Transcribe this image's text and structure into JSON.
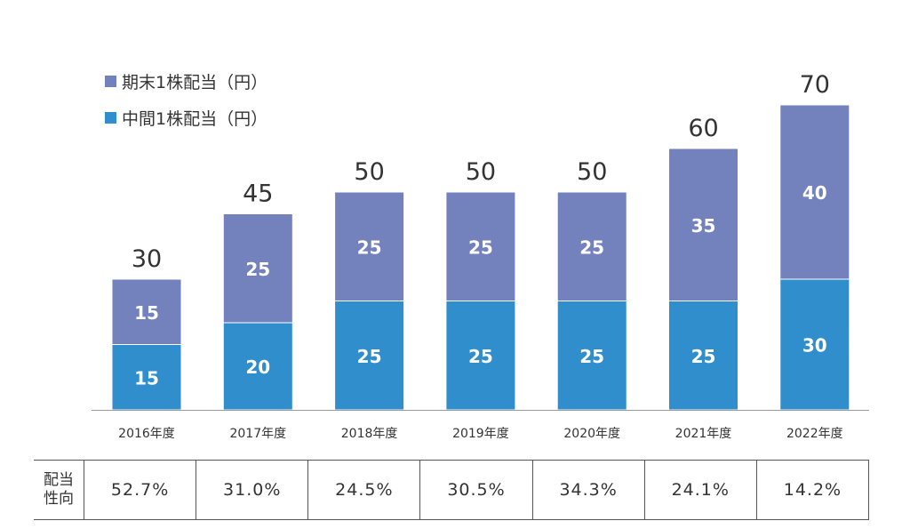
{
  "colors": {
    "period_end": "#7381bd",
    "interim": "#318ecd",
    "axis": "#999999"
  },
  "legend": {
    "period_end_label": "期末1株配当（円）",
    "interim_label": "中間1株配当（円）"
  },
  "chart_data": {
    "type": "bar",
    "stacked": true,
    "categories": [
      "2016年度",
      "2017年度",
      "2018年度",
      "2019年度",
      "2020年度",
      "2021年度",
      "2022年度"
    ],
    "series": [
      {
        "name": "中間1株配当（円）",
        "values": [
          15,
          20,
          25,
          25,
          25,
          25,
          30
        ]
      },
      {
        "name": "期末1株配当（円）",
        "values": [
          15,
          25,
          25,
          25,
          25,
          35,
          40
        ]
      }
    ],
    "totals": [
      30,
      45,
      50,
      50,
      50,
      60,
      70
    ],
    "ylim": [
      0,
      70
    ],
    "legend_position": "top-left"
  },
  "payout_table": {
    "header": "配当性向",
    "header_lines": [
      "配当",
      "性向"
    ],
    "values": [
      "52.7%",
      "31.0%",
      "24.5%",
      "30.5%",
      "34.3%",
      "24.1%",
      "14.2%"
    ]
  }
}
